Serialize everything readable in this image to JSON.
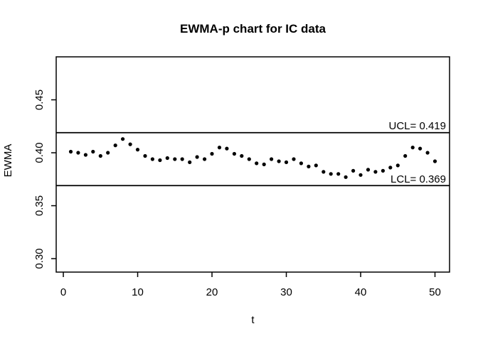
{
  "page": {
    "background": "#ffffff",
    "foreground": "#000000"
  },
  "chart_data": {
    "type": "scatter",
    "title": "EWMA-p chart for IC data",
    "xlabel": "t",
    "ylabel": "EWMA",
    "point_style": "filled-circle",
    "point_color": "#000000",
    "line_color": "#000000",
    "background": "#ffffff",
    "grid": false,
    "legend": null,
    "x_ticks": [
      0,
      10,
      20,
      30,
      40,
      50
    ],
    "y_tick_labels": [
      "0.30",
      "0.35",
      "0.40",
      "0.45"
    ],
    "y_ticks": [
      0.3,
      0.35,
      0.4,
      0.45
    ],
    "xlim": [
      -0.96,
      51.96
    ],
    "ylim": [
      0.2873,
      0.4906
    ],
    "control_limits": {
      "ucl": {
        "value": 0.419,
        "label": "UCL= 0.419"
      },
      "lcl": {
        "value": 0.369,
        "label": "LCL= 0.369"
      }
    },
    "x": [
      1,
      2,
      3,
      4,
      5,
      6,
      7,
      8,
      9,
      10,
      11,
      12,
      13,
      14,
      15,
      16,
      17,
      18,
      19,
      20,
      21,
      22,
      23,
      24,
      25,
      26,
      27,
      28,
      29,
      30,
      31,
      32,
      33,
      34,
      35,
      36,
      37,
      38,
      39,
      40,
      41,
      42,
      43,
      44,
      45,
      46,
      47,
      48,
      49,
      50
    ],
    "y": [
      0.401,
      0.4,
      0.398,
      0.401,
      0.397,
      0.4,
      0.407,
      0.413,
      0.408,
      0.403,
      0.397,
      0.394,
      0.393,
      0.395,
      0.394,
      0.394,
      0.391,
      0.396,
      0.394,
      0.399,
      0.405,
      0.404,
      0.399,
      0.397,
      0.394,
      0.39,
      0.389,
      0.394,
      0.392,
      0.391,
      0.394,
      0.39,
      0.387,
      0.388,
      0.382,
      0.38,
      0.38,
      0.377,
      0.383,
      0.379,
      0.384,
      0.382,
      0.383,
      0.386,
      0.388,
      0.397,
      0.405,
      0.404,
      0.4,
      0.392
    ]
  }
}
